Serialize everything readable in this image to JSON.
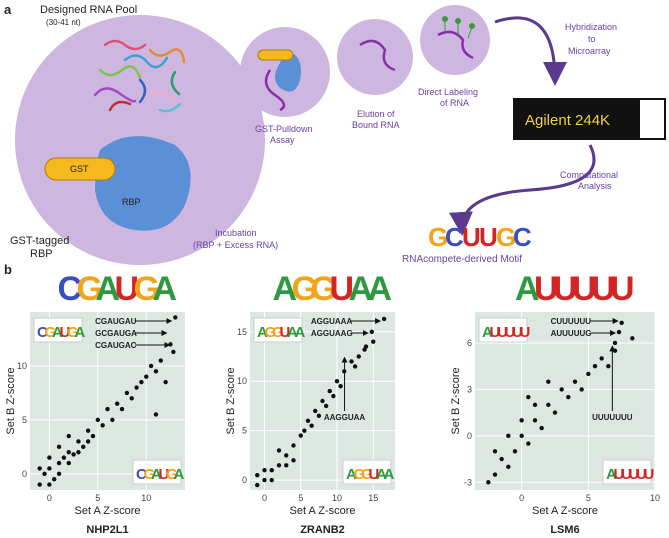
{
  "panel_a": {
    "letter": "a",
    "pool": "Designed RNA Pool",
    "pool_len": "(30-41 nt)",
    "gst": "GST",
    "rbp": "RBP",
    "tagged_1": "GST-tagged",
    "tagged_2": "RBP",
    "incubation_1": "Incubation",
    "incubation_2": "(RBP + Excess RNA)",
    "pulldown_1": "GST-Pulldown",
    "pulldown_2": "Assay",
    "elution_1": "Elution of",
    "elution_2": "Bound RNA",
    "labeling_1": "Direct Labeling",
    "labeling_2": "of RNA",
    "hyb_1": "Hybridization",
    "hyb_2": "to",
    "hyb_3": "Microarray",
    "array": "Agilent 244K",
    "comp_1": "Computational",
    "comp_2": "Analysis",
    "motif_caption": "RNAcompete-derived Motif",
    "motif": [
      "G",
      "C",
      "U",
      "U",
      "G",
      "C"
    ]
  },
  "panel_b": {
    "letter": "b"
  },
  "chart_data": [
    {
      "type": "scatter",
      "title": "NHP2L1",
      "motif": [
        "C",
        "G",
        "A",
        "U",
        "G",
        "A"
      ],
      "xlabel": "Set A Z-score",
      "ylabel": "Set B Z-score",
      "xlim": [
        -2,
        14
      ],
      "ylim": [
        -1.5,
        15
      ],
      "xticks": [
        0,
        5,
        10
      ],
      "yticks": [
        0,
        5,
        10
      ],
      "grid": true,
      "color": "#111111",
      "x": [
        -1,
        -0.5,
        0,
        0.5,
        1,
        1.5,
        2,
        2.5,
        3,
        3.5,
        4,
        4.5,
        5,
        5.5,
        6,
        6.5,
        7,
        7.5,
        8,
        8.5,
        9,
        9.5,
        10,
        10.5,
        11,
        11,
        12,
        11.5,
        0,
        1,
        2,
        3,
        4,
        -1,
        0,
        1,
        2
      ],
      "y": [
        -1,
        0,
        0.5,
        -0.5,
        1,
        1.5,
        2,
        1.8,
        3,
        2.5,
        4,
        3.5,
        5,
        4.5,
        6,
        5,
        6.5,
        6,
        7.5,
        7,
        8,
        8.5,
        9,
        10,
        9.5,
        5.5,
        8.5,
        10.5,
        -1,
        0,
        1,
        2,
        3,
        0.5,
        1.5,
        2.5,
        3.5
      ],
      "annotations": [
        {
          "text": "CGAUGAU",
          "x": 13,
          "y": 14.5
        },
        {
          "text": "GCGAUGA",
          "x": 12.5,
          "y": 12
        },
        {
          "text": "CGAUGAC",
          "x": 12.8,
          "y": 11.3
        }
      ]
    },
    {
      "type": "scatter",
      "title": "ZRANB2",
      "motif": [
        "A",
        "G",
        "G",
        "U",
        "A",
        "A"
      ],
      "xlabel": "Set A Z-score",
      "ylabel": "Set B Z-score",
      "xlim": [
        -2,
        18
      ],
      "ylim": [
        -1,
        17
      ],
      "xticks": [
        0,
        5,
        10,
        15
      ],
      "yticks": [
        0,
        5,
        10,
        15
      ],
      "grid": true,
      "color": "#111111",
      "x": [
        -1,
        0,
        1,
        2,
        3,
        4,
        5,
        5.5,
        6,
        6.5,
        7,
        7.5,
        8,
        8.5,
        9,
        9.5,
        10,
        10.5,
        11,
        12,
        12.5,
        13,
        14,
        15,
        0,
        1,
        2,
        3,
        4,
        -1
      ],
      "y": [
        -0.5,
        0,
        1,
        1.5,
        2.5,
        3.5,
        4.5,
        5,
        6,
        5.5,
        7,
        6.5,
        8,
        7.5,
        9,
        8.5,
        10,
        9.5,
        11,
        12,
        11.5,
        12.5,
        13.5,
        14,
        1,
        0,
        3,
        1.5,
        2,
        0.5
      ],
      "annotations": [
        {
          "text": "AGGUAAA",
          "x": 16.5,
          "y": 16.3
        },
        {
          "text": "AGGUAAG",
          "x": 14.8,
          "y": 15
        },
        {
          "text": "AAGGUAA",
          "x": 13.8,
          "y": 13.2
        }
      ]
    },
    {
      "type": "scatter",
      "title": "LSM6",
      "motif": [
        "A",
        "U",
        "U",
        "U",
        "U",
        "U"
      ],
      "xlabel": "Set A Z-score",
      "ylabel": "Set B Z-score",
      "xlim": [
        -3.5,
        10
      ],
      "ylim": [
        -3.5,
        8
      ],
      "xticks": [
        0,
        5,
        10
      ],
      "yticks": [
        -3,
        0,
        3,
        6
      ],
      "grid": true,
      "color": "#111111",
      "x": [
        -2,
        -1.5,
        -1,
        -1,
        -0.5,
        0,
        0,
        0.5,
        1,
        1,
        1.5,
        2,
        2.5,
        3,
        3.5,
        4,
        4.5,
        5,
        5.5,
        6,
        6.5,
        7,
        7,
        -2,
        0.5,
        2,
        -2.5
      ],
      "y": [
        -2.5,
        -1.5,
        -2,
        0,
        -1,
        0,
        1,
        -0.5,
        1,
        2,
        0.5,
        2,
        1.5,
        3,
        2.5,
        3.5,
        3,
        4,
        4.5,
        5,
        4.5,
        5.5,
        6,
        -1,
        2.5,
        3.5,
        -3
      ],
      "annotations": [
        {
          "text": "CUUUUUU",
          "x": 7.5,
          "y": 7.3
        },
        {
          "text": "AUUUUUG",
          "x": 7.3,
          "y": 6.7
        },
        {
          "text": "UUUUUUU",
          "x": 8.3,
          "y": 6.3
        }
      ]
    }
  ]
}
